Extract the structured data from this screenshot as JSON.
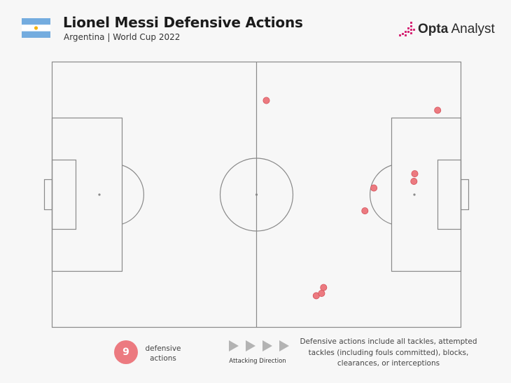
{
  "header": {
    "title": "Lionel Messi Defensive Actions",
    "subtitle": "Argentina | World Cup 2022"
  },
  "brand": {
    "name_bold": "Opta",
    "name_regular": " Analyst"
  },
  "colors": {
    "marker": "#ec7a80",
    "marker_stroke": "#d4535b",
    "pitch_line": "#8a8a8a",
    "flag_blue": "#74acdf",
    "flag_sun": "#f6b40e",
    "brand_accent": "#d62a77"
  },
  "legend": {
    "count": "9",
    "count_label": "defensive actions",
    "direction_label": "Attacking Direction",
    "note": "Defensive actions include all tackles, attempted tackles (including fouls committed), blocks, clearances, or interceptions"
  },
  "icons": [
    "argentina-flag-icon",
    "opta-logo-icon",
    "arrow-right-icon"
  ],
  "chart_data": {
    "type": "scatter",
    "x": [
      52.4,
      78.7,
      76.5,
      88.7,
      88.5,
      94.3,
      66.4,
      64.6,
      65.9
    ],
    "y": [
      85.5,
      52.5,
      43.9,
      57.9,
      55.0,
      81.8,
      15.0,
      11.9,
      12.8
    ],
    "xlim": [
      0,
      100
    ],
    "ylim": [
      0,
      100
    ],
    "grid": false,
    "attacking_direction": "left-to-right"
  }
}
